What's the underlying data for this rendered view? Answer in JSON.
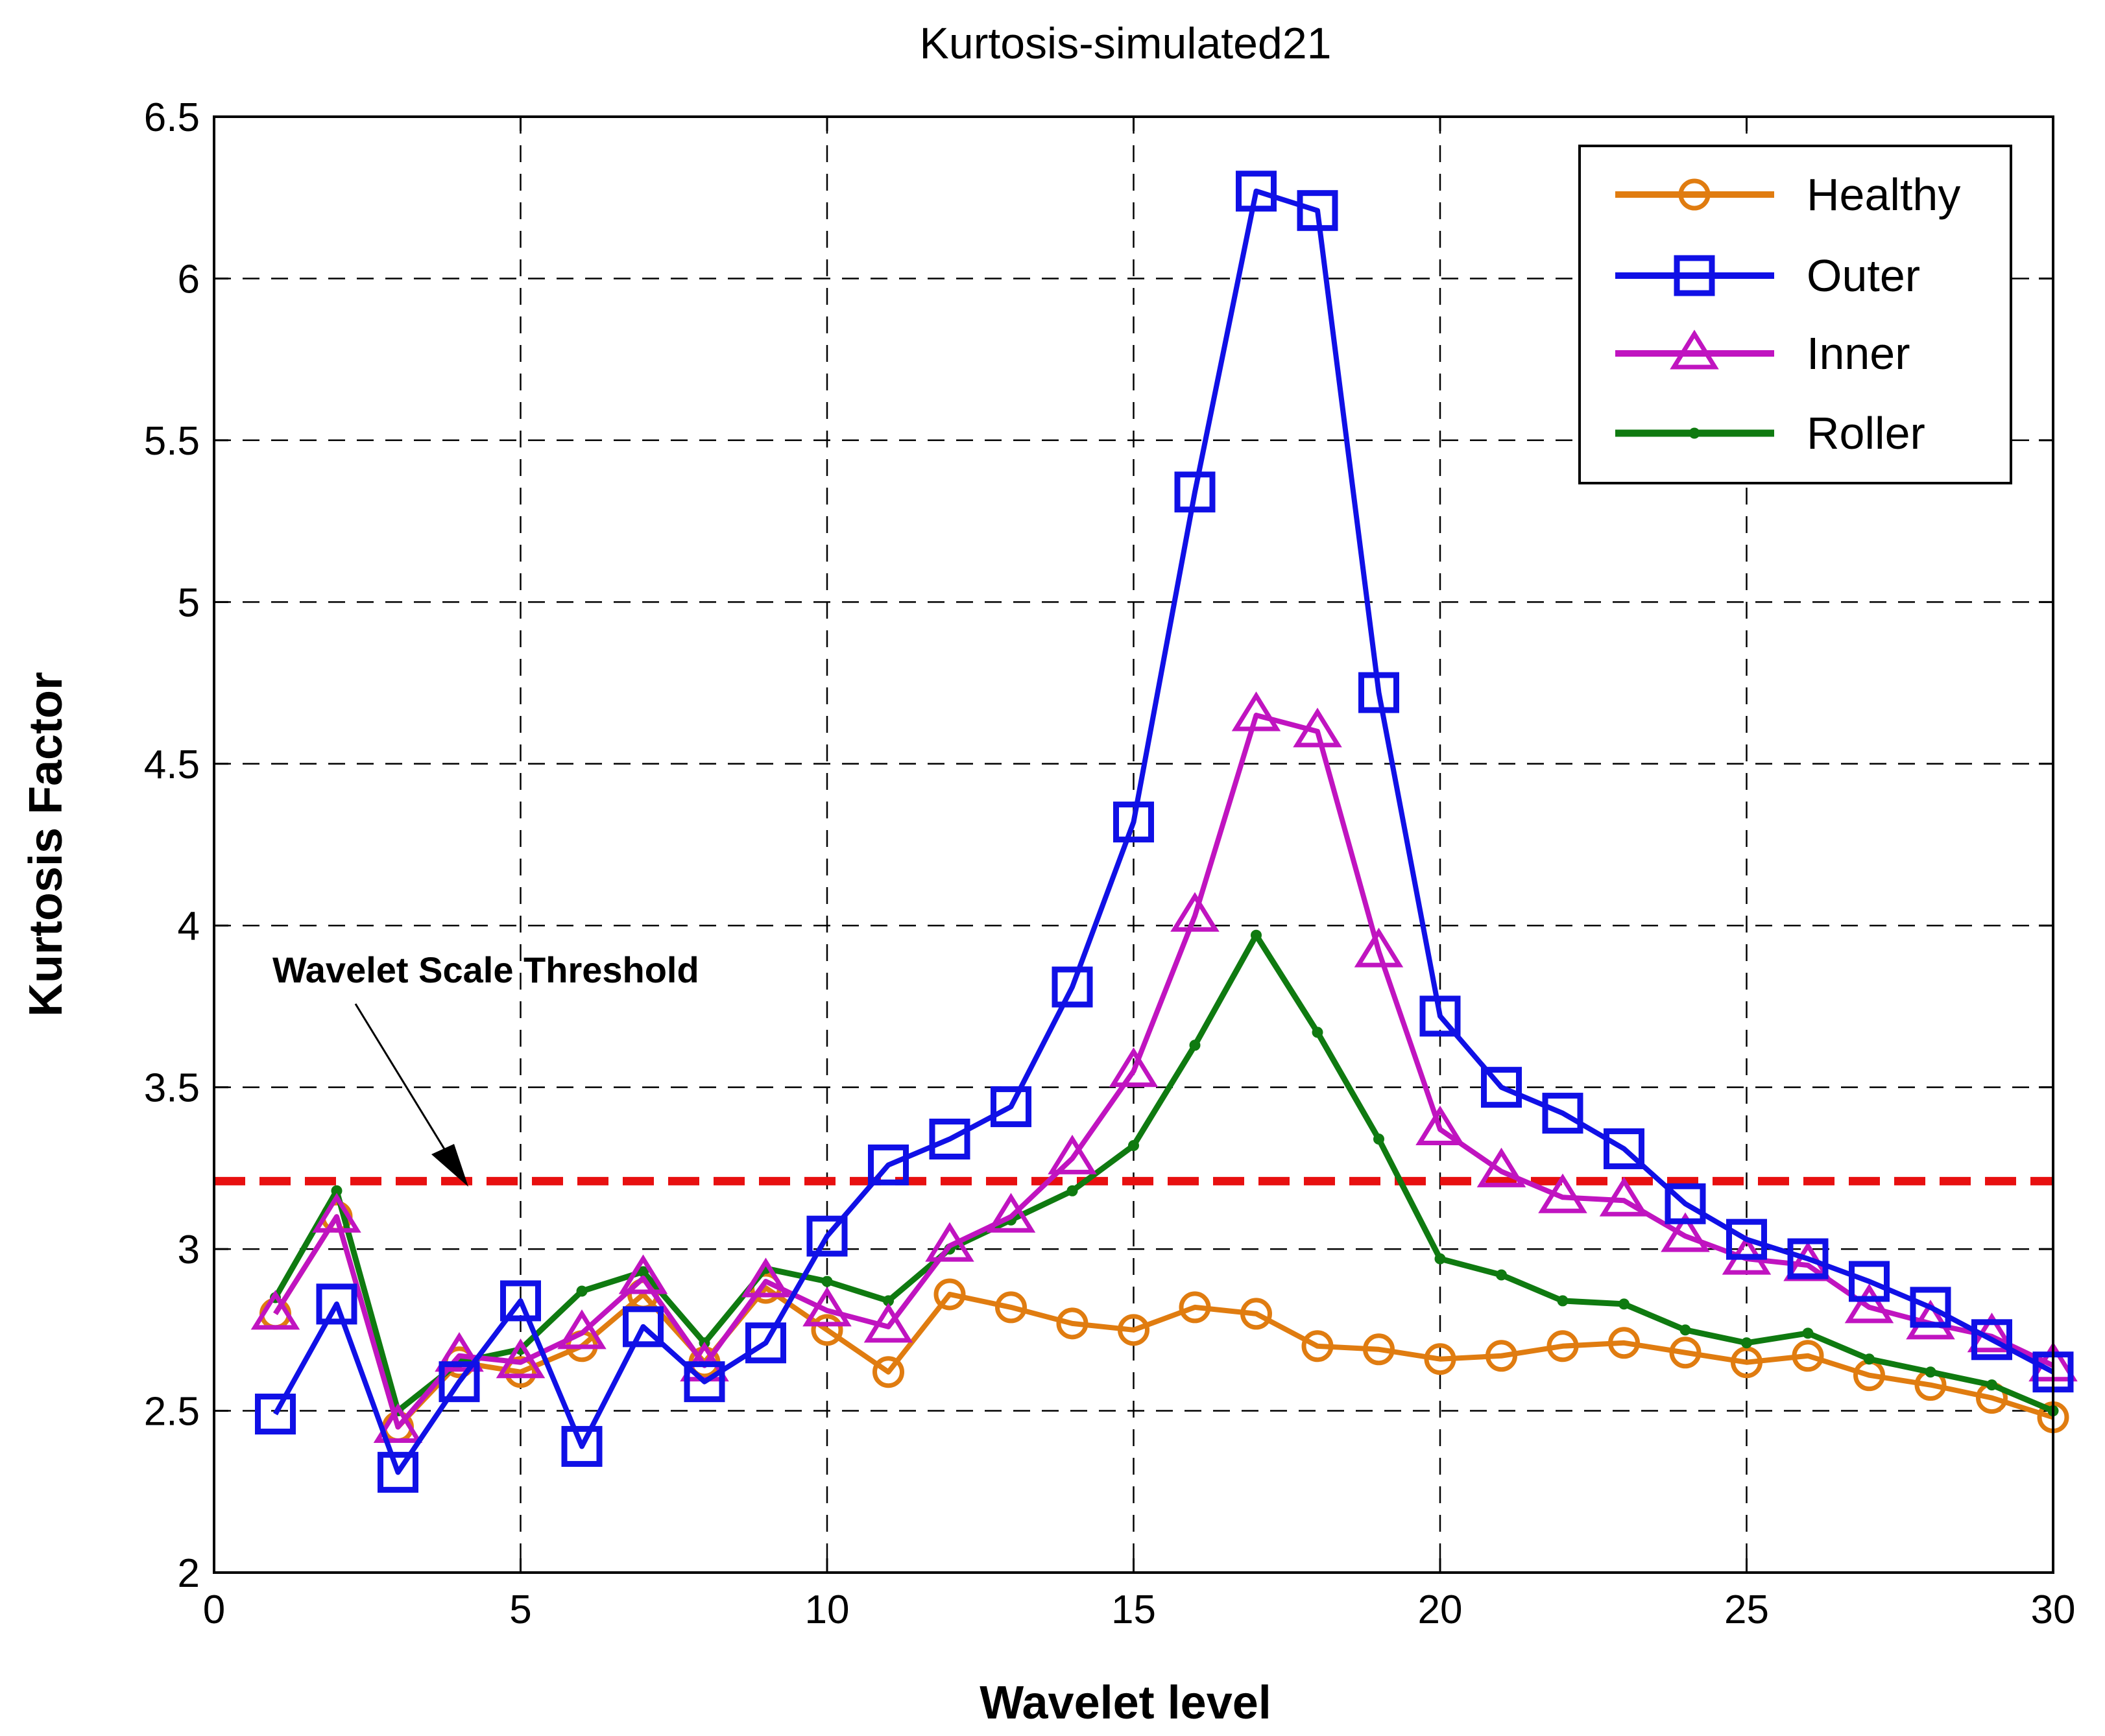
{
  "chart_data": {
    "type": "line",
    "title": "Kurtosis-simulated21",
    "xlabel": "Wavelet level",
    "ylabel": "Kurtosis Factor",
    "xlim": [
      0,
      30
    ],
    "ylim": [
      2,
      6.5
    ],
    "xticks": [
      0,
      5,
      10,
      15,
      20,
      25,
      30
    ],
    "yticks": [
      2,
      2.5,
      3,
      3.5,
      4,
      4.5,
      5,
      5.5,
      6,
      6.5
    ],
    "ytick_labels": [
      "2",
      "2.5",
      "3",
      "3.5",
      "4",
      "4.5",
      "5",
      "5.5",
      "6",
      "6.5"
    ],
    "grid": true,
    "legend_position": "top-right",
    "x": [
      1,
      2,
      3,
      4,
      5,
      6,
      7,
      8,
      9,
      10,
      11,
      12,
      13,
      14,
      15,
      16,
      17,
      18,
      19,
      20,
      21,
      22,
      23,
      24,
      25,
      26,
      27,
      28,
      29,
      30
    ],
    "series": [
      {
        "name": "Healthy",
        "color": "#e07c10",
        "marker": "circle",
        "values": [
          2.8,
          3.1,
          2.45,
          2.65,
          2.62,
          2.7,
          2.86,
          2.65,
          2.88,
          2.75,
          2.62,
          2.86,
          2.82,
          2.77,
          2.75,
          2.82,
          2.8,
          2.7,
          2.69,
          2.66,
          2.67,
          2.7,
          2.71,
          2.68,
          2.65,
          2.67,
          2.61,
          2.58,
          2.54,
          2.48
        ]
      },
      {
        "name": "Outer",
        "color": "#1010e6",
        "marker": "square",
        "values": [
          2.49,
          2.83,
          2.31,
          2.59,
          2.84,
          2.39,
          2.76,
          2.59,
          2.71,
          3.04,
          3.26,
          3.34,
          3.44,
          3.81,
          4.32,
          5.34,
          6.27,
          6.21,
          4.72,
          3.72,
          3.5,
          3.42,
          3.31,
          3.14,
          3.03,
          2.97,
          2.9,
          2.82,
          2.72,
          2.62
        ]
      },
      {
        "name": "Inner",
        "color": "#c014c0",
        "marker": "triangle",
        "values": [
          2.8,
          3.1,
          2.45,
          2.67,
          2.65,
          2.74,
          2.91,
          2.64,
          2.9,
          2.81,
          2.76,
          3.01,
          3.1,
          3.28,
          3.55,
          4.03,
          4.65,
          4.6,
          3.92,
          3.37,
          3.24,
          3.16,
          3.15,
          3.04,
          2.97,
          2.95,
          2.82,
          2.77,
          2.73,
          2.64
        ]
      },
      {
        "name": "Roller",
        "color": "#0f7a10",
        "marker": "dot",
        "values": [
          2.85,
          3.18,
          2.5,
          2.65,
          2.69,
          2.87,
          2.93,
          2.71,
          2.94,
          2.9,
          2.84,
          3.0,
          3.09,
          3.18,
          3.32,
          3.63,
          3.97,
          3.67,
          3.34,
          2.97,
          2.92,
          2.84,
          2.83,
          2.75,
          2.71,
          2.74,
          2.66,
          2.62,
          2.58,
          2.5
        ]
      }
    ],
    "threshold": {
      "value": 3.21,
      "color": "#e81010"
    },
    "annotation": "Wavelet Scale Threshold"
  }
}
